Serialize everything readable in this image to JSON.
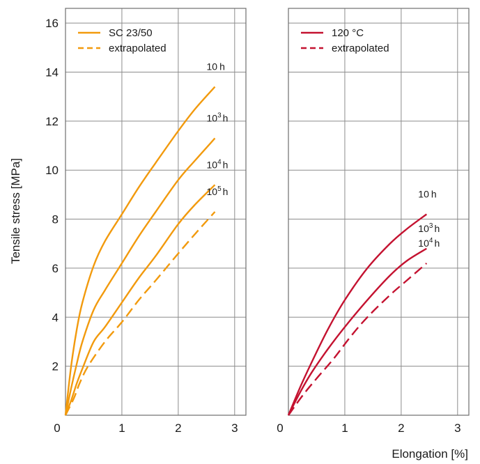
{
  "chart_data": [
    {
      "type": "line",
      "panel": "left",
      "x_ticks": [
        "0",
        "1",
        "2",
        "3"
      ],
      "y_ticks": [
        "2",
        "4",
        "6",
        "8",
        "10",
        "12",
        "14",
        "16"
      ],
      "xlim": [
        0,
        3.2
      ],
      "ylim": [
        0,
        16.6
      ],
      "grid": true,
      "legend": {
        "placement": "top-left",
        "entries": [
          {
            "label": "SC 23/50",
            "style": "solid"
          },
          {
            "label": "extrapolated",
            "style": "dashed"
          }
        ]
      },
      "color": "#f29a0d",
      "series": [
        {
          "label_base": "10",
          "label_exp": "",
          "label_unit": "h",
          "style": "solid",
          "x": [
            0,
            0.1,
            0.2,
            0.3,
            0.5,
            0.7,
            1.0,
            1.3,
            1.6,
            2.0,
            2.3,
            2.65
          ],
          "y": [
            0,
            2.0,
            3.5,
            4.6,
            6.1,
            7.1,
            8.2,
            9.3,
            10.3,
            11.6,
            12.5,
            13.4
          ]
        },
        {
          "label_base": "10",
          "label_exp": "3",
          "label_unit": "h",
          "style": "solid",
          "x": [
            0,
            0.1,
            0.2,
            0.3,
            0.5,
            0.7,
            1.0,
            1.3,
            1.6,
            2.0,
            2.3,
            2.65
          ],
          "y": [
            0,
            1.1,
            2.1,
            3.0,
            4.3,
            5.1,
            6.2,
            7.3,
            8.3,
            9.6,
            10.4,
            11.3
          ]
        },
        {
          "label_base": "10",
          "label_exp": "4",
          "label_unit": "h",
          "style": "solid",
          "x": [
            0,
            0.1,
            0.2,
            0.3,
            0.5,
            0.7,
            1.0,
            1.3,
            1.6,
            2.0,
            2.3,
            2.65
          ],
          "y": [
            0,
            0.6,
            1.3,
            1.9,
            3.0,
            3.6,
            4.6,
            5.6,
            6.5,
            7.8,
            8.6,
            9.4
          ]
        },
        {
          "label_base": "10",
          "label_exp": "5",
          "label_unit": "h",
          "style": "dashed",
          "x": [
            0,
            0.15,
            0.25,
            0.4,
            0.7,
            1.0,
            1.3,
            1.6,
            2.0,
            2.3,
            2.65
          ],
          "y": [
            0,
            0.7,
            1.3,
            2.0,
            3.0,
            3.8,
            4.7,
            5.5,
            6.6,
            7.4,
            8.3
          ]
        }
      ]
    },
    {
      "type": "line",
      "panel": "right",
      "x_ticks": [
        "0",
        "1",
        "2",
        "3"
      ],
      "xlim": [
        0,
        3.2
      ],
      "ylim": [
        0,
        16.6
      ],
      "xlabel": "Elongation [%]",
      "grid": true,
      "legend": {
        "placement": "top-left",
        "entries": [
          {
            "label": "120 °C",
            "style": "solid"
          },
          {
            "label": "extrapolated",
            "style": "dashed"
          }
        ]
      },
      "color": "#c41230",
      "series": [
        {
          "label_base": "10",
          "label_exp": "",
          "label_unit": "h",
          "style": "solid",
          "x": [
            0,
            0.2,
            0.4,
            0.7,
            1.0,
            1.4,
            1.8,
            2.1,
            2.45
          ],
          "y": [
            0,
            1.1,
            2.1,
            3.5,
            4.7,
            6.0,
            7.0,
            7.6,
            8.2
          ]
        },
        {
          "label_base": "10",
          "label_exp": "3",
          "label_unit": "h",
          "style": "solid",
          "x": [
            0,
            0.2,
            0.4,
            0.7,
            1.0,
            1.4,
            1.8,
            2.1,
            2.45
          ],
          "y": [
            0,
            0.9,
            1.7,
            2.7,
            3.6,
            4.7,
            5.7,
            6.3,
            6.8
          ]
        },
        {
          "label_base": "10",
          "label_exp": "4",
          "label_unit": "h",
          "style": "dashed",
          "x": [
            0,
            0.25,
            0.5,
            0.8,
            1.1,
            1.4,
            1.8,
            2.1,
            2.45
          ],
          "y": [
            0,
            0.8,
            1.5,
            2.3,
            3.2,
            4.0,
            4.9,
            5.5,
            6.2
          ]
        }
      ]
    }
  ],
  "ylabel": "Tensile stress [MPa]"
}
